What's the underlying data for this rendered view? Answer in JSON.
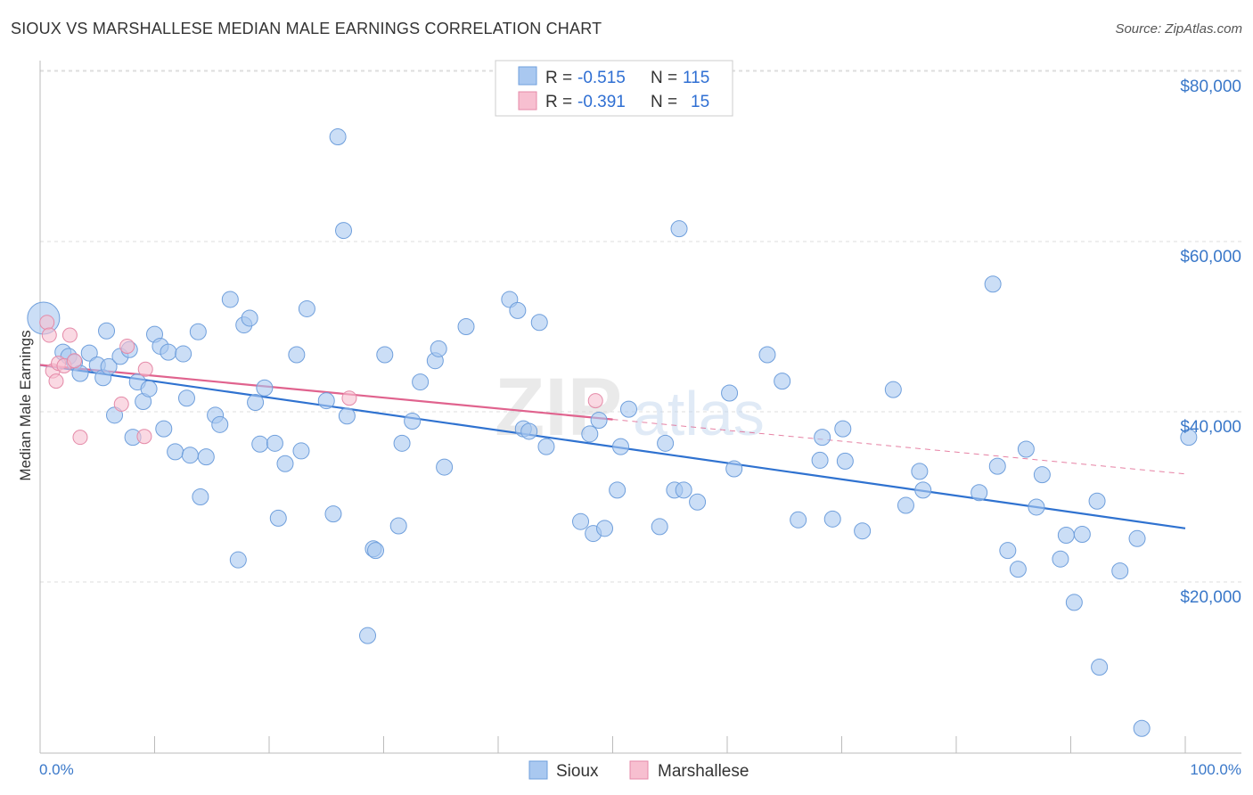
{
  "header": {
    "title": "SIOUX VS MARSHALLESE MEDIAN MALE EARNINGS CORRELATION CHART",
    "source": "Source: ZipAtlas.com"
  },
  "colors": {
    "sioux_fill": "#a9c8f0",
    "sioux_stroke": "#6f9fdc",
    "sioux_line": "#2f72d0",
    "marsh_fill": "#f7bfd0",
    "marsh_stroke": "#e58aa8",
    "marsh_line": "#e0638e",
    "grid": "#dddddd",
    "axis_text": "#3a78c9"
  },
  "legend": {
    "r_label": "R =",
    "n_label": "N =",
    "sioux_r": "-0.515",
    "sioux_n": "115",
    "marsh_r": "-0.391",
    "marsh_n": "15"
  },
  "bottom_legend": {
    "sioux": "Sioux",
    "marshallese": "Marshallese"
  },
  "watermark": {
    "zip": "ZIP",
    "atlas": "atlas"
  },
  "chart_data": {
    "type": "scatter",
    "title": "SIOUX VS MARSHALLESE MEDIAN MALE EARNINGS CORRELATION CHART",
    "xlabel": "",
    "ylabel": "Median Male Earnings",
    "xlim": [
      0,
      100
    ],
    "ylim": [
      2000,
      82000
    ],
    "x_tick_labels": [
      "0.0%",
      "100.0%"
    ],
    "y_ticks": [
      20000,
      40000,
      60000,
      80000
    ],
    "y_tick_labels": [
      "$20,000",
      "$40,000",
      "$60,000",
      "$80,000"
    ],
    "grid": true,
    "series": [
      {
        "name": "Sioux",
        "r": -0.515,
        "n": 115,
        "trend": {
          "x": [
            0,
            100
          ],
          "y": [
            45500,
            26300
          ]
        },
        "points": [
          [
            0.3,
            51000
          ],
          [
            2,
            47000
          ],
          [
            2.5,
            46500
          ],
          [
            3,
            45800
          ],
          [
            3.5,
            44500
          ],
          [
            4.3,
            46900
          ],
          [
            5,
            45500
          ],
          [
            5.5,
            44000
          ],
          [
            5.8,
            49500
          ],
          [
            6,
            45300
          ],
          [
            6.5,
            39600
          ],
          [
            7,
            46500
          ],
          [
            7.8,
            47300
          ],
          [
            8.1,
            37000
          ],
          [
            8.5,
            43500
          ],
          [
            9,
            41200
          ],
          [
            9.5,
            42700
          ],
          [
            10,
            49100
          ],
          [
            10.5,
            47700
          ],
          [
            10.8,
            38000
          ],
          [
            11.2,
            47000
          ],
          [
            11.8,
            35300
          ],
          [
            12.5,
            46800
          ],
          [
            12.8,
            41600
          ],
          [
            13.1,
            34900
          ],
          [
            13.8,
            49400
          ],
          [
            14,
            30000
          ],
          [
            14.5,
            34700
          ],
          [
            15.3,
            39600
          ],
          [
            15.7,
            38500
          ],
          [
            16.6,
            53200
          ],
          [
            17.3,
            22600
          ],
          [
            17.8,
            50200
          ],
          [
            18.3,
            51000
          ],
          [
            18.8,
            41100
          ],
          [
            19.2,
            36200
          ],
          [
            19.6,
            42800
          ],
          [
            20.5,
            36300
          ],
          [
            20.8,
            27500
          ],
          [
            21.4,
            33900
          ],
          [
            22.4,
            46700
          ],
          [
            22.8,
            35400
          ],
          [
            23.3,
            52100
          ],
          [
            25,
            41300
          ],
          [
            25.6,
            28000
          ],
          [
            26,
            72300
          ],
          [
            26.5,
            61300
          ],
          [
            26.8,
            39500
          ],
          [
            28.6,
            13700
          ],
          [
            29.1,
            23900
          ],
          [
            29.3,
            23700
          ],
          [
            30.1,
            46700
          ],
          [
            31.3,
            26600
          ],
          [
            31.6,
            36300
          ],
          [
            32.5,
            38900
          ],
          [
            33.2,
            43500
          ],
          [
            34.5,
            46000
          ],
          [
            34.8,
            47400
          ],
          [
            35.3,
            33500
          ],
          [
            37.2,
            50000
          ],
          [
            41,
            53200
          ],
          [
            41.7,
            51900
          ],
          [
            42.2,
            38000
          ],
          [
            42.7,
            37700
          ],
          [
            43.6,
            50500
          ],
          [
            44.2,
            35900
          ],
          [
            47.2,
            27100
          ],
          [
            48,
            37400
          ],
          [
            48.3,
            25700
          ],
          [
            48.8,
            39000
          ],
          [
            49.3,
            26300
          ],
          [
            50.4,
            30800
          ],
          [
            50.7,
            35900
          ],
          [
            51.4,
            40300
          ],
          [
            54.1,
            26500
          ],
          [
            54.6,
            36300
          ],
          [
            55.4,
            30800
          ],
          [
            55.8,
            61500
          ],
          [
            56.2,
            30800
          ],
          [
            57.4,
            29400
          ],
          [
            60.2,
            42200
          ],
          [
            60.6,
            33300
          ],
          [
            63.5,
            46700
          ],
          [
            64.8,
            43600
          ],
          [
            66.2,
            27300
          ],
          [
            68.1,
            34300
          ],
          [
            68.3,
            37000
          ],
          [
            69.2,
            27400
          ],
          [
            70.1,
            38000
          ],
          [
            70.3,
            34200
          ],
          [
            71.8,
            26000
          ],
          [
            74.5,
            42600
          ],
          [
            75.6,
            29000
          ],
          [
            76.8,
            33000
          ],
          [
            77.1,
            30800
          ],
          [
            83.2,
            55000
          ],
          [
            83.6,
            33600
          ],
          [
            84.5,
            23700
          ],
          [
            85.4,
            21500
          ],
          [
            86.1,
            35600
          ],
          [
            87,
            28800
          ],
          [
            87.5,
            32600
          ],
          [
            89.1,
            22700
          ],
          [
            89.6,
            25500
          ],
          [
            90.3,
            17600
          ],
          [
            91,
            25600
          ],
          [
            92.3,
            29500
          ],
          [
            92.5,
            10000
          ],
          [
            94.3,
            21300
          ],
          [
            95.8,
            25100
          ],
          [
            96.2,
            2800
          ],
          [
            100.3,
            37000
          ],
          [
            82,
            30500
          ]
        ]
      },
      {
        "name": "Marshallese",
        "r": -0.391,
        "n": 15,
        "trend": {
          "x": [
            0,
            50
          ],
          "y": [
            45500,
            39100
          ]
        },
        "trend_dashed": {
          "x": [
            50,
            100
          ],
          "y": [
            39100,
            32700
          ]
        },
        "points": [
          [
            0.6,
            50500
          ],
          [
            0.8,
            49000
          ],
          [
            1.1,
            44800
          ],
          [
            1.4,
            43600
          ],
          [
            1.6,
            45700
          ],
          [
            2.1,
            45400
          ],
          [
            2.6,
            49000
          ],
          [
            3,
            46000
          ],
          [
            3.5,
            37000
          ],
          [
            7.1,
            40900
          ],
          [
            7.6,
            47700
          ],
          [
            9.1,
            37100
          ],
          [
            9.2,
            45000
          ],
          [
            27,
            41600
          ],
          [
            48.5,
            41300
          ]
        ]
      }
    ]
  }
}
